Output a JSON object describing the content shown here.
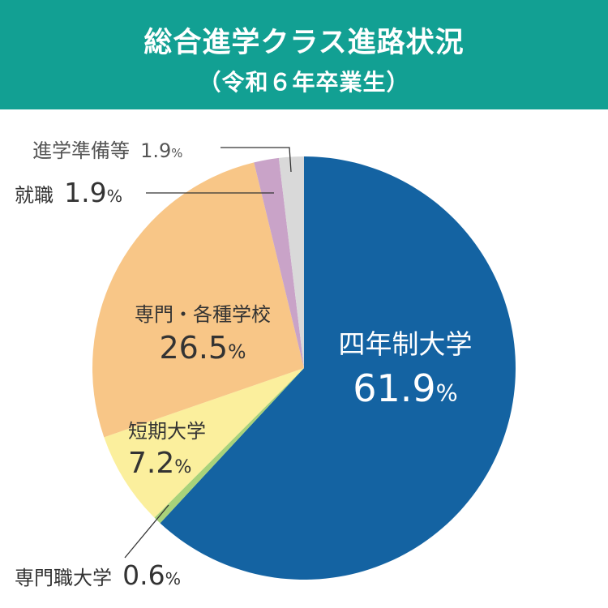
{
  "header": {
    "title": "総合進学クラス進路状況",
    "subtitle": "（令和６年卒業生）"
  },
  "chart_data": {
    "type": "pie",
    "title": "総合進学クラス進路状況",
    "subtitle": "（令和６年卒業生）",
    "unit": "%",
    "slices": [
      {
        "label": "四年制大学",
        "value": 61.9,
        "value_text": "61.9",
        "color": "#1463a2"
      },
      {
        "label": "専門職大学",
        "value": 0.6,
        "value_text": "0.6",
        "color": "#a8d27a"
      },
      {
        "label": "短期大学",
        "value": 7.2,
        "value_text": "7.2",
        "color": "#fbef9d"
      },
      {
        "label": "専門・各種学校",
        "value": 26.5,
        "value_text": "26.5",
        "color": "#f8c687"
      },
      {
        "label": "就職",
        "value": 1.9,
        "value_text": "1.9",
        "color": "#c9a3c8"
      },
      {
        "label": "進学準備等",
        "value": 1.9,
        "value_text": "1.9",
        "color": "#d9d9d9"
      }
    ],
    "start": "12 o'clock",
    "direction": "clockwise"
  }
}
